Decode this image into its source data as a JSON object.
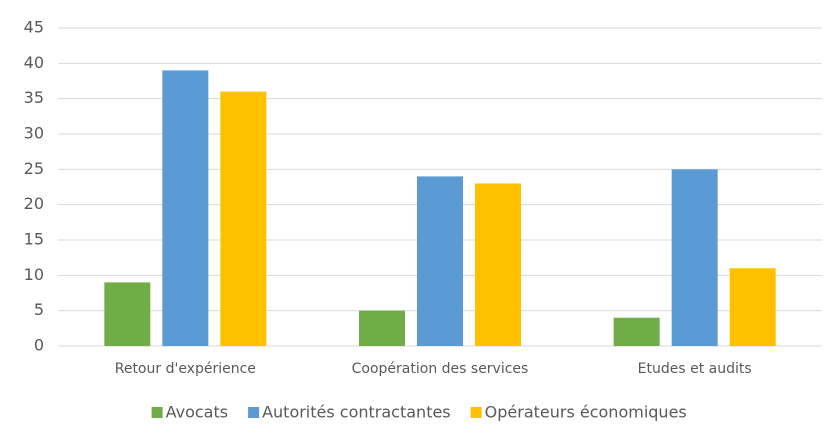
{
  "chart_data": {
    "type": "bar",
    "categories": [
      "Retour d'expérience",
      "Coopération des services",
      "Etudes et audits"
    ],
    "series": [
      {
        "name": "Avocats",
        "color": "#70ad47",
        "values": [
          9,
          5,
          4
        ]
      },
      {
        "name": "Autorités contractantes",
        "color": "#5b9bd5",
        "values": [
          39,
          24,
          25
        ]
      },
      {
        "name": "Opérateurs économiques",
        "color": "#ffc000",
        "values": [
          36,
          23,
          11
        ]
      }
    ],
    "ylim": [
      0,
      45
    ],
    "yticks": [
      0,
      5,
      10,
      15,
      20,
      25,
      30,
      35,
      40,
      45
    ],
    "grid": true,
    "legend": "bottom"
  }
}
